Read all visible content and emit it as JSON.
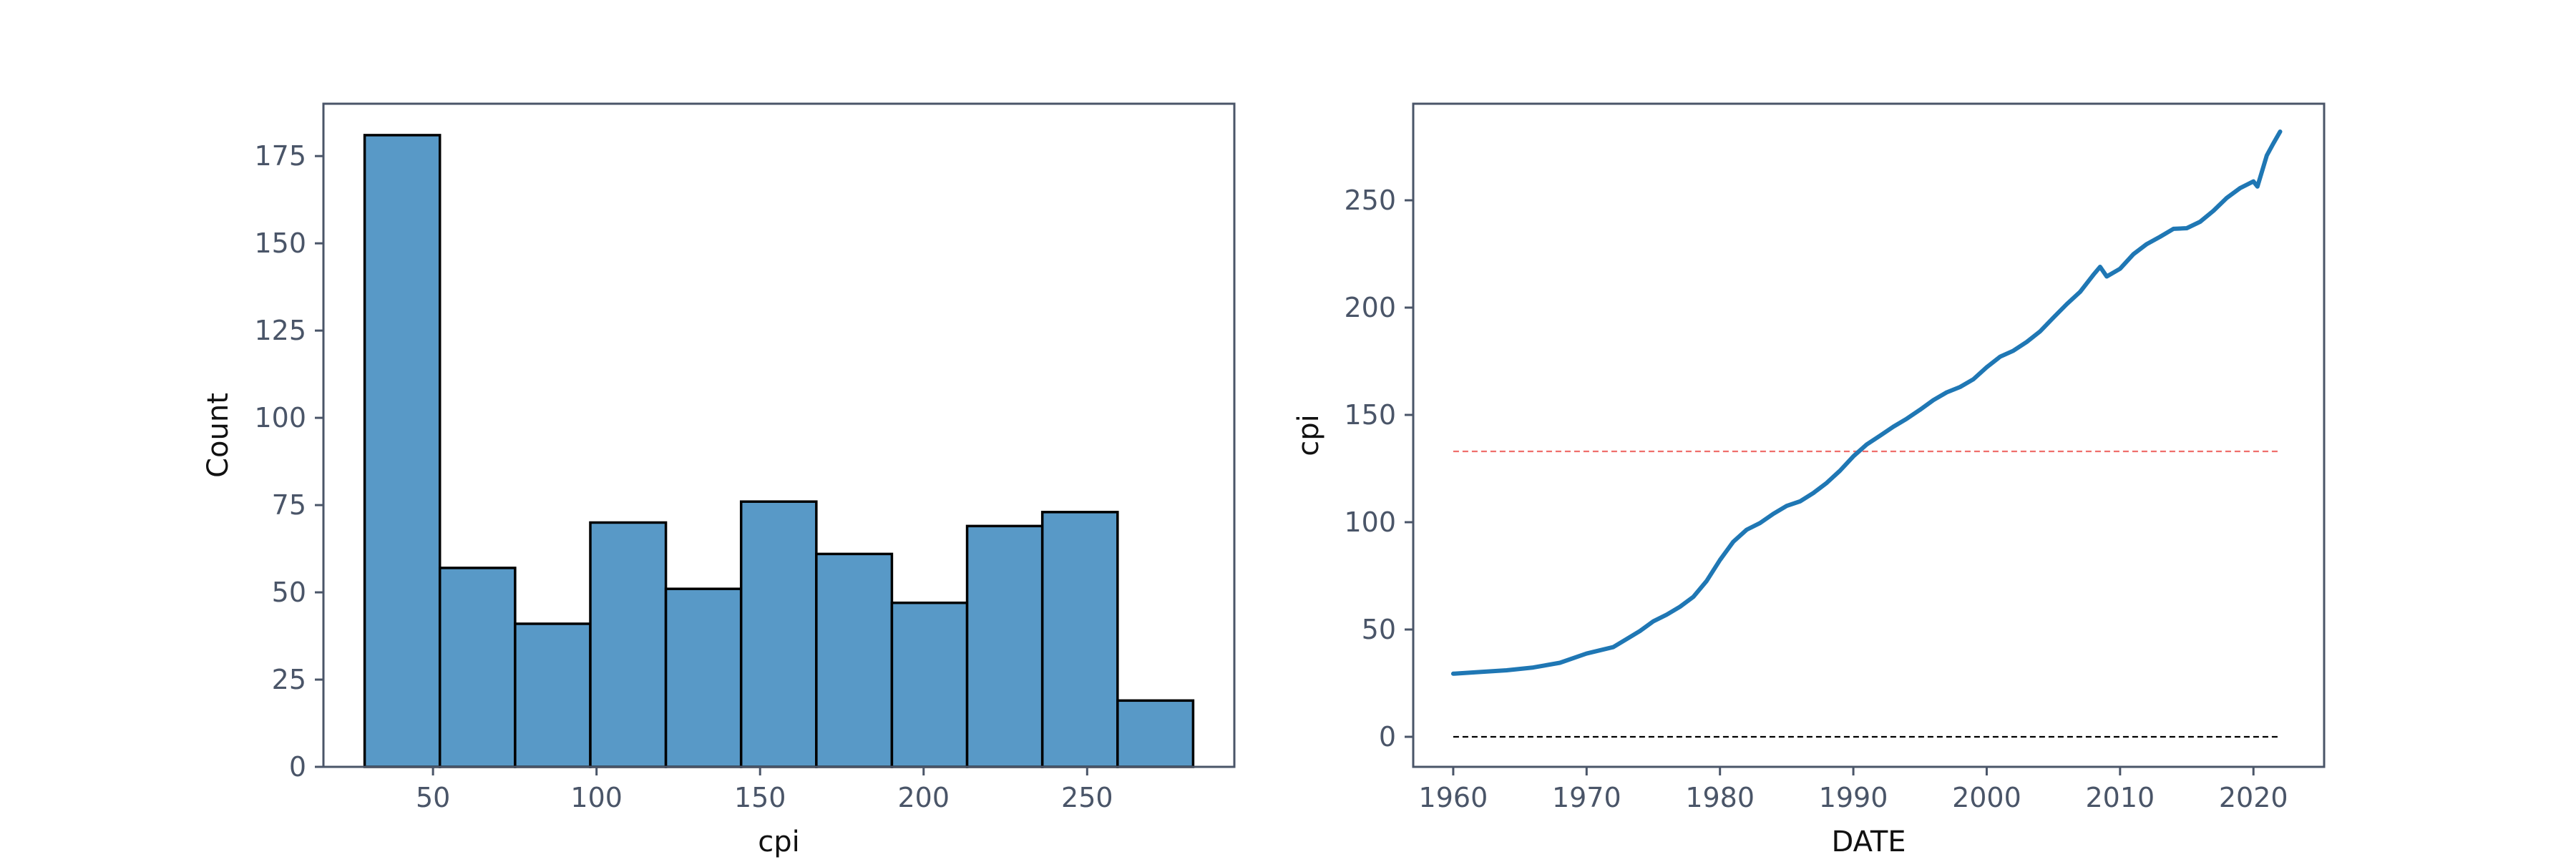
{
  "chart_data": [
    {
      "type": "bar",
      "title": "",
      "xlabel": "cpi",
      "ylabel": "Count",
      "bin_edges": [
        29.1,
        52.1,
        75.1,
        98.1,
        121.2,
        144.2,
        167.2,
        190.3,
        213.3,
        236.3,
        259.3,
        282.4
      ],
      "values": [
        181,
        57,
        41,
        70,
        51,
        76,
        61,
        47,
        69,
        73,
        19
      ],
      "xlim": [
        16.5,
        295
      ],
      "ylim": [
        0,
        175
      ],
      "ylim_plot": [
        0,
        190
      ],
      "xticks": [
        50,
        100,
        150,
        200,
        250
      ],
      "xtick_labels": [
        "50",
        "100",
        "150",
        "200",
        "250"
      ],
      "yticks": [
        0,
        25,
        50,
        75,
        100,
        125,
        150,
        175
      ],
      "ytick_labels": [
        "0",
        "25",
        "50",
        "75",
        "100",
        "125",
        "150",
        "175"
      ],
      "bar_color": "#5899c7",
      "edge_color": "#000000",
      "grid": false,
      "legend": "none"
    },
    {
      "type": "line",
      "title": "",
      "xlabel": "DATE",
      "ylabel": "cpi",
      "xlim": [
        1957,
        2025.3
      ],
      "ylim_plot": [
        -14,
        295
      ],
      "xticks": [
        1960,
        1970,
        1980,
        1990,
        2000,
        2010,
        2020
      ],
      "xtick_labels": [
        "1960",
        "1970",
        "1980",
        "1990",
        "2000",
        "2010",
        "2020"
      ],
      "yticks": [
        0,
        50,
        100,
        150,
        200,
        250
      ],
      "ytick_labels": [
        "0",
        "50",
        "100",
        "150",
        "200",
        "250"
      ],
      "grid": false,
      "legend": "none",
      "series": [
        {
          "color": "#1f77b4",
          "x": [
            1960,
            1962,
            1964,
            1966,
            1968,
            1970,
            1972,
            1974,
            1975,
            1976,
            1977,
            1978,
            1979,
            1980,
            1981,
            1982,
            1983,
            1984,
            1985,
            1986,
            1987,
            1988,
            1989,
            1990,
            1991,
            1992,
            1993,
            1994,
            1995,
            1996,
            1997,
            1998,
            1999,
            2000,
            2001,
            2002,
            2003,
            2004,
            2005,
            2006,
            2007,
            2008,
            2008.5,
            2009,
            2010,
            2011,
            2012,
            2013,
            2014,
            2015,
            2016,
            2017,
            2018,
            2019,
            2020,
            2020.3,
            2021,
            2021.5,
            2022
          ],
          "y": [
            29.4,
            30.2,
            31.0,
            32.3,
            34.5,
            38.8,
            41.8,
            49.3,
            53.8,
            56.9,
            60.6,
            65.2,
            72.6,
            82.4,
            90.9,
            96.5,
            99.6,
            103.9,
            107.6,
            109.7,
            113.6,
            118.3,
            124.0,
            130.7,
            136.2,
            140.3,
            144.5,
            148.2,
            152.4,
            156.9,
            160.5,
            163.0,
            166.6,
            172.2,
            177.1,
            179.9,
            184.0,
            188.9,
            195.3,
            201.6,
            207.3,
            215.3,
            219.0,
            214.5,
            218.1,
            224.9,
            229.6,
            233.0,
            236.7,
            237.0,
            240.0,
            245.1,
            251.1,
            255.7,
            258.8,
            256.4,
            270.9,
            276.6,
            282.0
          ]
        }
      ],
      "reference_lines": [
        {
          "y": 133.0,
          "color": "#ef6f6c",
          "style": "dashed"
        },
        {
          "y": 0,
          "color": "#000000",
          "style": "dashed"
        }
      ]
    }
  ]
}
